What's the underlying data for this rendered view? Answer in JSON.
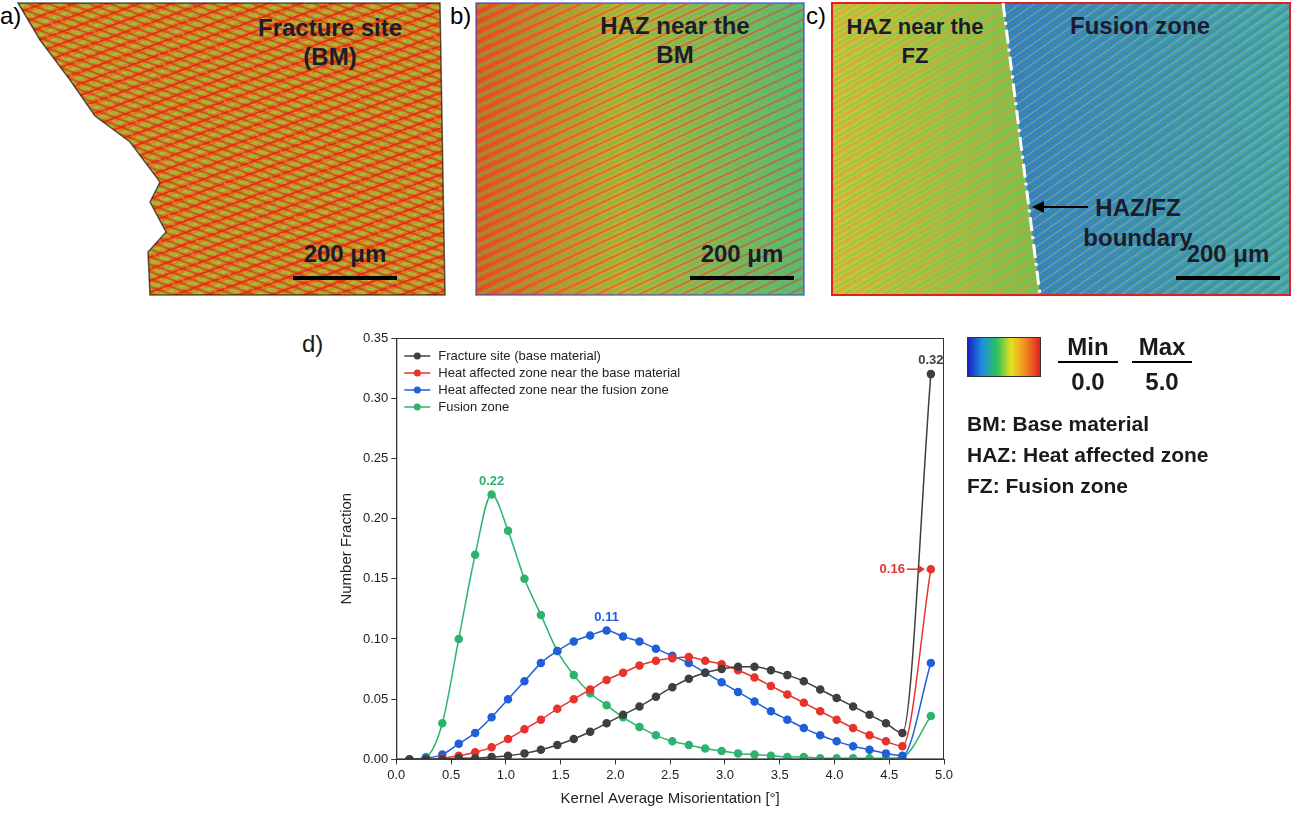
{
  "chart_data": {
    "type": "line",
    "panel_label": "d)",
    "x_label": "Kernel Average Misorientation [°]",
    "y_label": "Number Fraction",
    "x": [
      0.12,
      0.27,
      0.42,
      0.57,
      0.72,
      0.87,
      1.02,
      1.17,
      1.32,
      1.47,
      1.62,
      1.77,
      1.92,
      2.07,
      2.22,
      2.37,
      2.52,
      2.67,
      2.82,
      2.97,
      3.12,
      3.27,
      3.42,
      3.57,
      3.72,
      3.87,
      4.02,
      4.17,
      4.32,
      4.47,
      4.62,
      4.88
    ],
    "series": [
      {
        "name": "Fracture site (base material)",
        "color": "#3f3f3f",
        "marker": "circle",
        "line_style": "solid",
        "values": [
          0,
          0,
          0,
          0.001,
          0.001,
          0.002,
          0.003,
          0.005,
          0.008,
          0.012,
          0.017,
          0.023,
          0.03,
          0.037,
          0.044,
          0.052,
          0.06,
          0.067,
          0.072,
          0.075,
          0.077,
          0.077,
          0.074,
          0.07,
          0.065,
          0.058,
          0.051,
          0.044,
          0.037,
          0.03,
          0.022,
          0.32
        ]
      },
      {
        "name": "Heat affected zone near the base material",
        "color": "#e8322b",
        "marker": "circle",
        "line_style": "solid",
        "values": [
          0,
          0,
          0.001,
          0.003,
          0.006,
          0.01,
          0.017,
          0.025,
          0.033,
          0.042,
          0.05,
          0.058,
          0.066,
          0.072,
          0.078,
          0.082,
          0.084,
          0.085,
          0.082,
          0.079,
          0.074,
          0.068,
          0.061,
          0.054,
          0.047,
          0.04,
          0.033,
          0.026,
          0.02,
          0.015,
          0.011,
          0.158
        ]
      },
      {
        "name": "Heat affected zone near the fusion zone",
        "color": "#1f5fd8",
        "marker": "circle",
        "line_style": "solid",
        "values": [
          0,
          0.001,
          0.004,
          0.013,
          0.022,
          0.035,
          0.05,
          0.065,
          0.08,
          0.09,
          0.098,
          0.103,
          0.107,
          0.102,
          0.098,
          0.092,
          0.086,
          0.08,
          0.072,
          0.064,
          0.056,
          0.048,
          0.04,
          0.033,
          0.026,
          0.02,
          0.015,
          0.011,
          0.008,
          0.005,
          0.003,
          0.08
        ]
      },
      {
        "name": "Fusion zone",
        "color": "#2db36e",
        "marker": "circle",
        "line_style": "solid",
        "values": [
          0,
          0.002,
          0.03,
          0.1,
          0.17,
          0.22,
          0.19,
          0.15,
          0.12,
          0.09,
          0.07,
          0.055,
          0.045,
          0.035,
          0.027,
          0.02,
          0.015,
          0.012,
          0.009,
          0.007,
          0.005,
          0.004,
          0.003,
          0.002,
          0.002,
          0.001,
          0.001,
          0.001,
          0.001,
          0.001,
          0.002,
          0.036
        ]
      }
    ],
    "xlim": [
      0,
      5
    ],
    "xticks": [
      {
        "value": 0,
        "label": "0.0"
      },
      {
        "value": 0.5,
        "label": "0.5"
      },
      {
        "value": 1,
        "label": "1.0"
      },
      {
        "value": 1.5,
        "label": "1.5"
      },
      {
        "value": 2,
        "label": "2.0"
      },
      {
        "value": 2.5,
        "label": "2.5"
      },
      {
        "value": 3,
        "label": "3.0"
      },
      {
        "value": 3.5,
        "label": "3.5"
      },
      {
        "value": 4,
        "label": "4.0"
      },
      {
        "value": 4.5,
        "label": "4.5"
      },
      {
        "value": 5,
        "label": "5.0"
      }
    ],
    "ylim": [
      0,
      0.35
    ],
    "yticks": [
      {
        "value": 0,
        "label": "0.00"
      },
      {
        "value": 0.05,
        "label": "0.05"
      },
      {
        "value": 0.1,
        "label": "0.10"
      },
      {
        "value": 0.15,
        "label": "0.15"
      },
      {
        "value": 0.2,
        "label": "0.20"
      },
      {
        "value": 0.25,
        "label": "0.25"
      },
      {
        "value": 0.3,
        "label": "0.30"
      },
      {
        "value": 0.35,
        "label": "0.35"
      }
    ],
    "grid": false,
    "legend": "upper left",
    "annotations": [
      {
        "text": "0.32",
        "x": 4.88,
        "y": 0.32,
        "series": "Fracture site (base material)"
      },
      {
        "text": "0.16",
        "x": 4.88,
        "y": 0.158,
        "series": "Heat affected zone near the base material"
      },
      {
        "text": "0.11",
        "x": 1.92,
        "y": 0.107,
        "series": "Heat affected zone near the fusion zone"
      },
      {
        "text": "0.22",
        "x": 0.87,
        "y": 0.22,
        "series": "Fusion zone"
      }
    ]
  },
  "panels": [
    {
      "label": "a)",
      "title": "Fracture site (BM)",
      "scale_bar": "200 μm"
    },
    {
      "label": "b)",
      "title": "HAZ near the BM",
      "scale_bar": "200 μm"
    },
    {
      "label": "c)",
      "title": "HAZ near the FZ",
      "region_title": "Fusion zone",
      "boundary_label": "HAZ/FZ boundary",
      "scale_bar": "200 μm"
    }
  ],
  "colorbar": {
    "min_label": "Min",
    "max_label": "Max",
    "ticks": [
      {
        "value": 0,
        "label": "0.0"
      },
      {
        "value": 5,
        "label": "5.0"
      }
    ]
  },
  "abbreviations": [
    "BM: Base material",
    "HAZ: Heat affected zone",
    "FZ: Fusion zone"
  ]
}
